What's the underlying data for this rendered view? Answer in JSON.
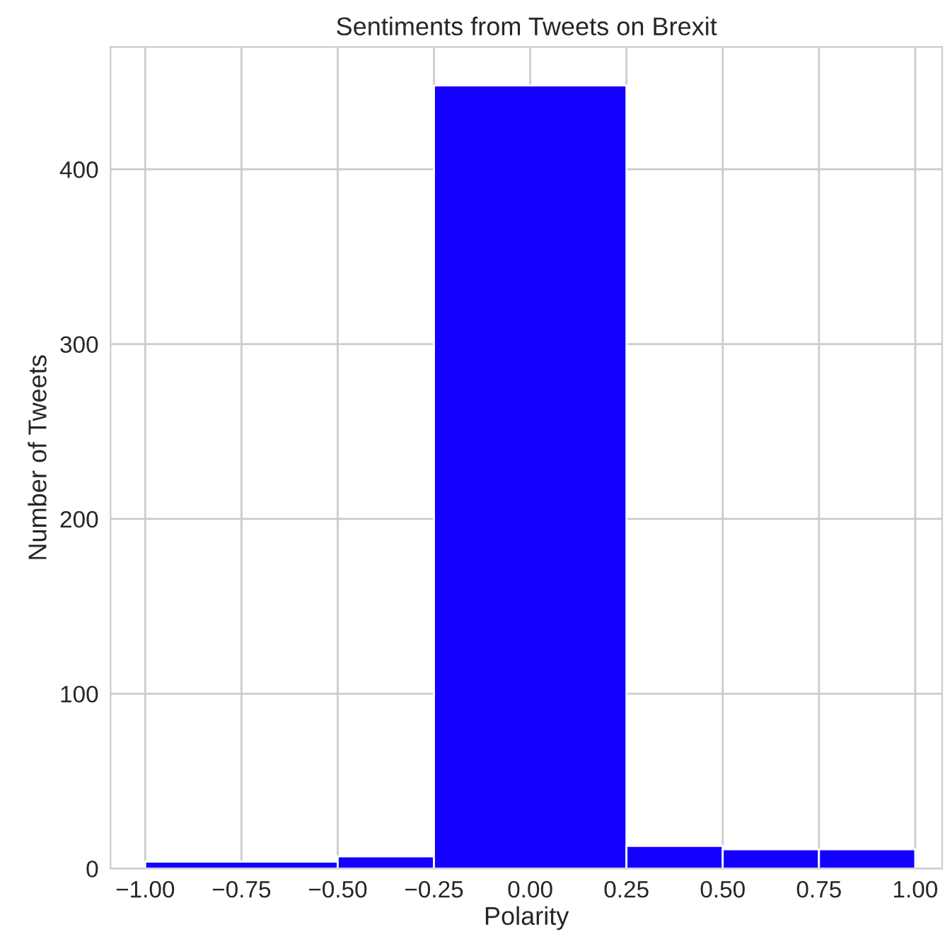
{
  "chart_data": {
    "type": "histogram",
    "title": "Sentiments from Tweets on Brexit",
    "xlabel": "Polarity",
    "ylabel": "Number of Tweets",
    "bins": [
      -1.0,
      -0.5,
      -0.25,
      0.25,
      0.5,
      0.75,
      1.0
    ],
    "values": [
      4,
      7,
      448,
      13,
      11,
      11
    ],
    "color": "#1400ff",
    "xlim": [
      -1.09,
      1.07
    ],
    "xticks": [
      {
        "value": -1.0,
        "label": "−1.00"
      },
      {
        "value": -0.75,
        "label": "−0.75"
      },
      {
        "value": -0.5,
        "label": "−0.50"
      },
      {
        "value": -0.25,
        "label": "−0.25"
      },
      {
        "value": 0.0,
        "label": "0.00"
      },
      {
        "value": 0.25,
        "label": "0.25"
      },
      {
        "value": 0.5,
        "label": "0.50"
      },
      {
        "value": 0.75,
        "label": "0.75"
      },
      {
        "value": 1.0,
        "label": "1.00"
      }
    ],
    "ylim": [
      0,
      470
    ],
    "yticks": [
      0,
      100,
      200,
      300,
      400
    ],
    "grid": true
  }
}
